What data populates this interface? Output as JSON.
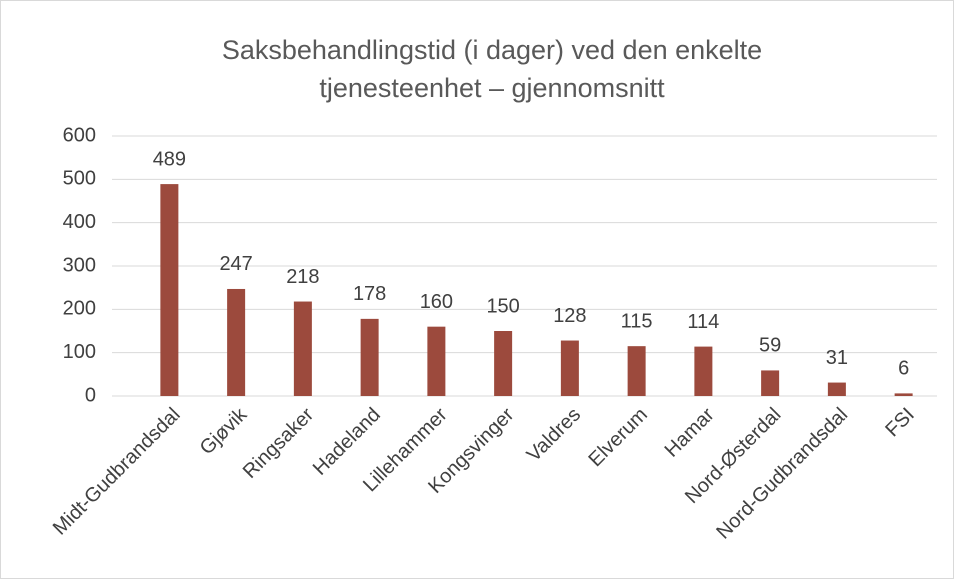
{
  "chart_data": {
    "type": "bar",
    "title": [
      "Saksbehandlingstid (i dager) ved den enkelte",
      "tjenesteenhet – gjennomsnitt"
    ],
    "categories": [
      "Midt-Gudbrandsdal",
      "Gjøvik",
      "Ringsaker",
      "Hadeland",
      "Lillehammer",
      "Kongsvinger",
      "Valdres",
      "Elverum",
      "Hamar",
      "Nord-Østerdal",
      "Nord-Gudbrandsdal",
      "FSI"
    ],
    "values": [
      489,
      247,
      218,
      178,
      160,
      150,
      128,
      115,
      114,
      59,
      31,
      6
    ],
    "color": "#9c4a3d",
    "ylim": [
      0,
      600
    ],
    "yticks": [
      0,
      100,
      200,
      300,
      400,
      500,
      600
    ],
    "grid": true
  }
}
